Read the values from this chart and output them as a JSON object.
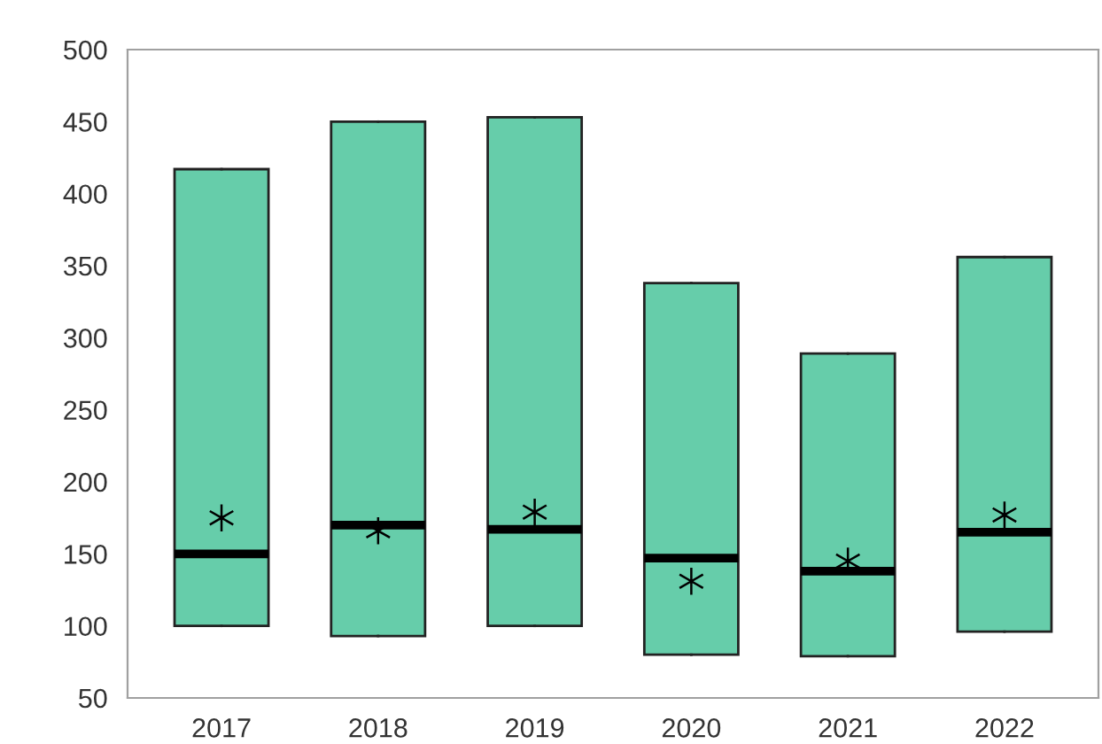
{
  "chart_data": {
    "type": "box",
    "categories": [
      "2017",
      "2018",
      "2019",
      "2020",
      "2021",
      "2022"
    ],
    "series": [
      {
        "color": "#66cdaa",
        "boxes": [
          {
            "low": 100,
            "q1": 100,
            "median": 150,
            "q3": 417,
            "high": 417,
            "mean": 175
          },
          {
            "low": 93,
            "q1": 93,
            "median": 170,
            "q3": 450,
            "high": 450,
            "mean": 166
          },
          {
            "low": 100,
            "q1": 100,
            "median": 167,
            "q3": 453,
            "high": 453,
            "mean": 179
          },
          {
            "low": 80,
            "q1": 80,
            "median": 147,
            "q3": 338,
            "high": 338,
            "mean": 131
          },
          {
            "low": 79,
            "q1": 79,
            "median": 138,
            "q3": 289,
            "high": 289,
            "mean": 145
          },
          {
            "low": 96,
            "q1": 96,
            "median": 165,
            "q3": 356,
            "high": 356,
            "mean": 177
          }
        ]
      }
    ],
    "ylim": [
      50,
      500
    ],
    "yticks": [
      50,
      100,
      150,
      200,
      250,
      300,
      350,
      400,
      450,
      500
    ],
    "grid": false,
    "legend": false,
    "marker": "star"
  }
}
